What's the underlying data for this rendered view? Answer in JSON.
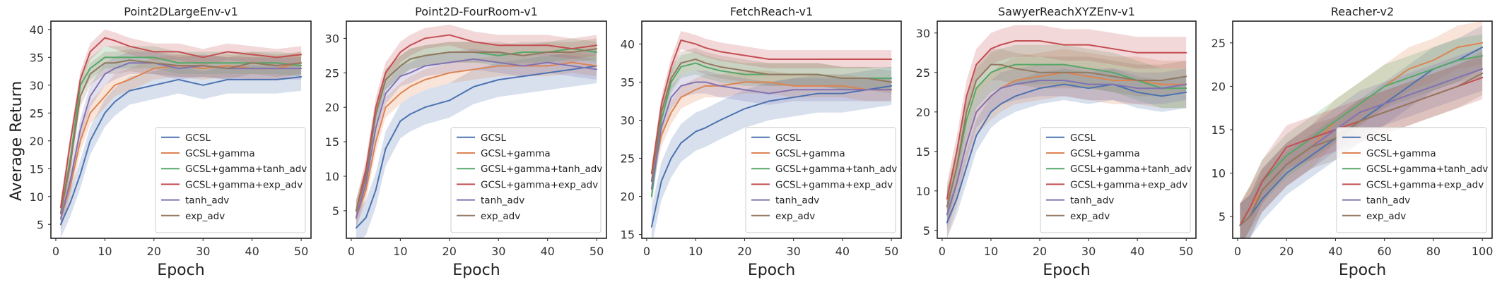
{
  "figure": {
    "ylabel": "Average Return",
    "series_colors": {
      "GCSL": "#4c72b0",
      "GCSL+gamma": "#dd8452",
      "GCSL+gamma+tanh_adv": "#55a868",
      "GCSL+gamma+exp_adv": "#c44e52",
      "tanh_adv": "#8172b3",
      "exp_adv": "#937860"
    }
  },
  "chart_data": [
    {
      "type": "line",
      "title": "Point2DLargeEnv-v1",
      "xlabel": "Epoch",
      "ylabel": "Average Return",
      "xlim": [
        -1,
        52
      ],
      "ylim": [
        2.5,
        41.5
      ],
      "xticks": [
        0,
        10,
        20,
        30,
        40,
        50
      ],
      "yticks": [
        5,
        10,
        15,
        20,
        25,
        30,
        35,
        40
      ],
      "legend_position": "lower-right",
      "grid": false,
      "series": [
        {
          "name": "GCSL",
          "x": [
            1,
            3,
            5,
            7,
            10,
            12,
            15,
            20,
            25,
            30,
            35,
            40,
            45,
            50
          ],
          "y": [
            5,
            9,
            14,
            20,
            25,
            27,
            29,
            30,
            31,
            30,
            31,
            31,
            31,
            31.5
          ],
          "band": 2.5
        },
        {
          "name": "GCSL+gamma",
          "x": [
            1,
            3,
            5,
            7,
            10,
            12,
            15,
            20,
            25,
            30,
            35,
            40,
            45,
            50
          ],
          "y": [
            6,
            12,
            20,
            25,
            28,
            30,
            31,
            33,
            33.5,
            33,
            33.5,
            33,
            33,
            34
          ],
          "band": 2
        },
        {
          "name": "GCSL+gamma+tanh_adv",
          "x": [
            1,
            3,
            5,
            7,
            10,
            12,
            15,
            20,
            25,
            30,
            35,
            40,
            45,
            50
          ],
          "y": [
            7,
            17,
            30,
            33,
            35,
            35,
            35,
            35,
            34,
            34,
            34,
            34,
            34,
            33.5
          ],
          "band": 2
        },
        {
          "name": "GCSL+gamma+exp_adv",
          "x": [
            1,
            3,
            5,
            7,
            10,
            12,
            15,
            20,
            25,
            30,
            35,
            40,
            45,
            50
          ],
          "y": [
            8,
            20,
            31,
            36,
            38.5,
            38,
            37,
            36,
            36,
            35,
            36,
            35.5,
            35,
            35.5
          ],
          "band": 1.5
        },
        {
          "name": "tanh_adv",
          "x": [
            1,
            3,
            5,
            7,
            10,
            12,
            15,
            20,
            25,
            30,
            35,
            40,
            45,
            50
          ],
          "y": [
            6,
            13,
            22,
            28,
            32,
            33,
            34,
            34,
            33,
            33.5,
            33,
            33,
            33,
            33
          ],
          "band": 2
        },
        {
          "name": "exp_adv",
          "x": [
            1,
            3,
            5,
            7,
            10,
            12,
            15,
            20,
            25,
            30,
            35,
            40,
            45,
            50
          ],
          "y": [
            7,
            16,
            28,
            32,
            34,
            34,
            34.5,
            34,
            33.5,
            33.5,
            33,
            34,
            33.5,
            34
          ],
          "band": 2
        }
      ]
    },
    {
      "type": "line",
      "title": "Point2D-FourRoom-v1",
      "xlabel": "Epoch",
      "ylabel": "",
      "xlim": [
        -1,
        52
      ],
      "ylim": [
        1.0,
        32.5
      ],
      "xticks": [
        0,
        10,
        20,
        30,
        40,
        50
      ],
      "yticks": [
        5,
        10,
        15,
        20,
        25,
        30
      ],
      "legend_position": "lower-right",
      "grid": false,
      "series": [
        {
          "name": "GCSL",
          "x": [
            1,
            3,
            5,
            7,
            10,
            12,
            15,
            20,
            25,
            30,
            35,
            40,
            45,
            50
          ],
          "y": [
            2.5,
            4,
            8,
            14,
            18,
            19,
            20,
            21,
            23,
            24,
            24.5,
            25,
            25.5,
            26
          ],
          "band": 2.5
        },
        {
          "name": "GCSL+gamma",
          "x": [
            1,
            3,
            5,
            7,
            10,
            12,
            15,
            20,
            25,
            30,
            35,
            40,
            45,
            50
          ],
          "y": [
            4,
            8,
            15,
            20,
            22,
            23,
            24,
            25,
            25.5,
            26,
            26,
            26,
            26.5,
            26
          ],
          "band": 1.5
        },
        {
          "name": "GCSL+gamma+tanh_adv",
          "x": [
            1,
            3,
            5,
            7,
            10,
            12,
            15,
            20,
            25,
            30,
            35,
            40,
            45,
            50
          ],
          "y": [
            5,
            10,
            19,
            24,
            26,
            27,
            27.5,
            28,
            28,
            27.5,
            28,
            28,
            28.5,
            28
          ],
          "band": 1.5
        },
        {
          "name": "GCSL+gamma+exp_adv",
          "x": [
            1,
            3,
            5,
            7,
            10,
            12,
            15,
            20,
            25,
            30,
            35,
            40,
            45,
            50
          ],
          "y": [
            5,
            11,
            20,
            25,
            28,
            29,
            30,
            30.5,
            29.5,
            29,
            29,
            29,
            28.5,
            29
          ],
          "band": 1.5
        },
        {
          "name": "tanh_adv",
          "x": [
            1,
            3,
            5,
            7,
            10,
            12,
            15,
            20,
            25,
            30,
            35,
            40,
            45,
            50
          ],
          "y": [
            4,
            9,
            17,
            22,
            24.5,
            25,
            26,
            26.5,
            27,
            26.5,
            26,
            26.5,
            26,
            25.5
          ],
          "band": 1.5
        },
        {
          "name": "exp_adv",
          "x": [
            1,
            3,
            5,
            7,
            10,
            12,
            15,
            20,
            25,
            30,
            35,
            40,
            45,
            50
          ],
          "y": [
            5,
            10,
            19,
            24,
            26,
            27,
            27.5,
            28,
            28,
            28,
            27.5,
            28,
            28,
            28.5
          ],
          "band": 1.5
        }
      ]
    },
    {
      "type": "line",
      "title": "FetchReach-v1",
      "xlabel": "Epoch",
      "ylabel": "",
      "xlim": [
        -1,
        52
      ],
      "ylim": [
        14.5,
        43
      ],
      "xticks": [
        0,
        10,
        20,
        30,
        40,
        50
      ],
      "yticks": [
        15,
        20,
        25,
        30,
        35,
        40
      ],
      "legend_position": "lower-right",
      "grid": false,
      "series": [
        {
          "name": "GCSL",
          "x": [
            1,
            3,
            5,
            7,
            10,
            12,
            15,
            20,
            25,
            30,
            35,
            40,
            45,
            50
          ],
          "y": [
            16,
            22,
            25,
            27,
            28.5,
            29,
            30,
            31.5,
            32.5,
            33,
            33.5,
            33.5,
            34,
            34.5
          ],
          "band": 2.5
        },
        {
          "name": "GCSL+gamma",
          "x": [
            1,
            3,
            5,
            7,
            10,
            12,
            15,
            20,
            25,
            30,
            35,
            40,
            45,
            50
          ],
          "y": [
            22,
            28,
            31,
            33,
            34,
            34.5,
            34.5,
            35,
            35,
            34.5,
            34.5,
            34.5,
            34,
            34
          ],
          "band": 1.5
        },
        {
          "name": "GCSL+gamma+tanh_adv",
          "x": [
            1,
            3,
            5,
            7,
            10,
            12,
            15,
            20,
            25,
            30,
            35,
            40,
            45,
            50
          ],
          "y": [
            20,
            30,
            35,
            37,
            37.5,
            37,
            36.5,
            36,
            36,
            36,
            36,
            35.5,
            35.5,
            35.5
          ],
          "band": 1.5
        },
        {
          "name": "GCSL+gamma+exp_adv",
          "x": [
            1,
            3,
            5,
            7,
            10,
            12,
            15,
            20,
            25,
            30,
            35,
            40,
            45,
            50
          ],
          "y": [
            23,
            32,
            37,
            40.5,
            40,
            39.5,
            39,
            38.5,
            38,
            38,
            38,
            38,
            38,
            38
          ],
          "band": 1.2
        },
        {
          "name": "tanh_adv",
          "x": [
            1,
            3,
            5,
            7,
            10,
            12,
            15,
            20,
            25,
            30,
            35,
            40,
            45,
            50
          ],
          "y": [
            21,
            29,
            33,
            34.5,
            35,
            35,
            34.5,
            34,
            33.5,
            34,
            34,
            34,
            34,
            34
          ],
          "band": 1.5
        },
        {
          "name": "exp_adv",
          "x": [
            1,
            3,
            5,
            7,
            10,
            12,
            15,
            20,
            25,
            30,
            35,
            40,
            45,
            50
          ],
          "y": [
            22,
            31,
            35.5,
            37.5,
            38,
            37.5,
            37,
            36.5,
            36,
            36,
            36,
            35.5,
            35.5,
            35
          ],
          "band": 1.5
        }
      ]
    },
    {
      "type": "line",
      "title": "SawyerReachXYZEnv-v1",
      "xlabel": "Epoch",
      "ylabel": "",
      "xlim": [
        -1,
        52
      ],
      "ylim": [
        4.0,
        31.5
      ],
      "xticks": [
        0,
        10,
        20,
        30,
        40,
        50
      ],
      "yticks": [
        5,
        10,
        15,
        20,
        25,
        30
      ],
      "legend_position": "lower-right",
      "grid": false,
      "series": [
        {
          "name": "GCSL",
          "x": [
            1,
            3,
            5,
            7,
            10,
            12,
            15,
            20,
            25,
            30,
            35,
            40,
            45,
            50
          ],
          "y": [
            6,
            9,
            13,
            17,
            20,
            21,
            22,
            23,
            23.5,
            23,
            23.5,
            22.5,
            22,
            22.5
          ],
          "band": 2
        },
        {
          "name": "GCSL+gamma",
          "x": [
            1,
            3,
            5,
            7,
            10,
            12,
            15,
            20,
            25,
            30,
            35,
            40,
            45,
            50
          ],
          "y": [
            7,
            11,
            16,
            20,
            22,
            23,
            24,
            24.5,
            25,
            24.5,
            24,
            24,
            23.5,
            23.5
          ],
          "band": 3
        },
        {
          "name": "GCSL+gamma+tanh_adv",
          "x": [
            1,
            3,
            5,
            7,
            10,
            12,
            15,
            20,
            25,
            30,
            35,
            40,
            45,
            50
          ],
          "y": [
            8,
            13,
            19,
            23,
            25,
            25.5,
            26,
            26,
            26,
            25.5,
            25,
            24,
            23,
            23
          ],
          "band": 2.5
        },
        {
          "name": "GCSL+gamma+exp_adv",
          "x": [
            1,
            3,
            5,
            7,
            10,
            12,
            15,
            20,
            25,
            30,
            35,
            40,
            45,
            50
          ],
          "y": [
            9,
            15,
            22,
            26,
            28,
            28.5,
            29,
            29,
            28.5,
            28.5,
            28,
            27.5,
            27.5,
            27.5
          ],
          "band": 2
        },
        {
          "name": "tanh_adv",
          "x": [
            1,
            3,
            5,
            7,
            10,
            12,
            15,
            20,
            25,
            30,
            35,
            40,
            45,
            50
          ],
          "y": [
            7,
            11,
            16,
            20,
            22,
            23,
            23.5,
            24,
            24,
            23.5,
            23.5,
            23,
            23,
            23.5
          ],
          "band": 2
        },
        {
          "name": "exp_adv",
          "x": [
            1,
            3,
            5,
            7,
            10,
            12,
            15,
            20,
            25,
            30,
            35,
            40,
            45,
            50
          ],
          "y": [
            8,
            13,
            20,
            24,
            26,
            26,
            25.5,
            25,
            25,
            25,
            24.5,
            24,
            24,
            24.5
          ],
          "band": 2
        }
      ]
    },
    {
      "type": "line",
      "title": "Reacher-v2",
      "xlabel": "Epoch",
      "ylabel": "",
      "xlim": [
        -2,
        104
      ],
      "ylim": [
        2.5,
        27.5
      ],
      "xticks": [
        0,
        20,
        40,
        60,
        80,
        100
      ],
      "yticks": [
        5,
        10,
        15,
        20,
        25
      ],
      "legend_position": "lower-right",
      "grid": false,
      "series": [
        {
          "name": "GCSL",
          "x": [
            1,
            5,
            10,
            20,
            30,
            40,
            50,
            60,
            70,
            80,
            90,
            100
          ],
          "y": [
            4,
            5,
            7,
            10,
            12,
            14,
            16,
            18,
            20,
            22,
            23,
            24.5
          ],
          "band": 2.5
        },
        {
          "name": "GCSL+gamma",
          "x": [
            1,
            5,
            10,
            20,
            30,
            40,
            50,
            60,
            70,
            80,
            90,
            100
          ],
          "y": [
            4,
            6,
            8,
            11,
            13,
            16,
            18,
            20,
            22,
            23,
            24.5,
            25
          ],
          "band": 2.5
        },
        {
          "name": "GCSL+gamma+tanh_adv",
          "x": [
            1,
            5,
            10,
            20,
            30,
            40,
            50,
            60,
            70,
            80,
            90,
            100
          ],
          "y": [
            4,
            6,
            9,
            12,
            14,
            16,
            18,
            20,
            21,
            22,
            23,
            23.5
          ],
          "band": 2.5
        },
        {
          "name": "GCSL+gamma+exp_adv",
          "x": [
            1,
            5,
            10,
            20,
            30,
            40,
            50,
            60,
            70,
            80,
            90,
            100
          ],
          "y": [
            4,
            6,
            9,
            13,
            14,
            15,
            16,
            17,
            18,
            19,
            20,
            21
          ],
          "band": 2.5
        },
        {
          "name": "tanh_adv",
          "x": [
            1,
            5,
            10,
            20,
            30,
            40,
            50,
            60,
            70,
            80,
            90,
            100
          ],
          "y": [
            4,
            5,
            8,
            11,
            13,
            15,
            17,
            18,
            19,
            20,
            21,
            22
          ],
          "band": 2.5
        },
        {
          "name": "exp_adv",
          "x": [
            1,
            5,
            10,
            20,
            30,
            40,
            50,
            60,
            70,
            80,
            90,
            100
          ],
          "y": [
            4,
            5,
            8,
            11,
            13,
            14,
            16,
            17,
            18,
            19,
            20,
            21.5
          ],
          "band": 2.5
        }
      ]
    }
  ]
}
